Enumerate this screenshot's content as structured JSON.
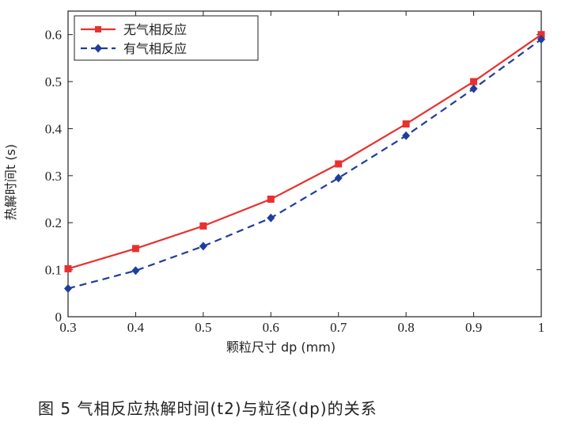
{
  "chart_data": {
    "type": "line",
    "x": [
      0.3,
      0.4,
      0.5,
      0.6,
      0.7,
      0.8,
      0.9,
      1.0
    ],
    "series": [
      {
        "name": "无气相反应",
        "values": [
          0.102,
          0.145,
          0.193,
          0.25,
          0.325,
          0.41,
          0.5,
          0.6
        ],
        "color": "#e8312e",
        "line_style": "solid",
        "marker": "square"
      },
      {
        "name": "有气相反应",
        "values": [
          0.06,
          0.098,
          0.15,
          0.21,
          0.295,
          0.385,
          0.485,
          0.59
        ],
        "color": "#1f3d9c",
        "line_style": "dashed",
        "marker": "diamond"
      }
    ],
    "xlim": [
      0.3,
      1.0
    ],
    "ylim": [
      0,
      0.65
    ],
    "x_ticks": [
      "0.3",
      "0.4",
      "0.5",
      "0.6",
      "0.7",
      "0.8",
      "0.9",
      "1"
    ],
    "y_ticks": [
      "0",
      "0.1",
      "0.2",
      "0.3",
      "0.4",
      "0.5",
      "0.6"
    ],
    "xlabel": "颗粒尺寸 dp (mm)",
    "ylabel": "热解时间t (s)",
    "legend_position": "top-left",
    "grid": false
  },
  "caption": "图 5  气相反应热解时间(t2)与粒径(dp)的关系"
}
